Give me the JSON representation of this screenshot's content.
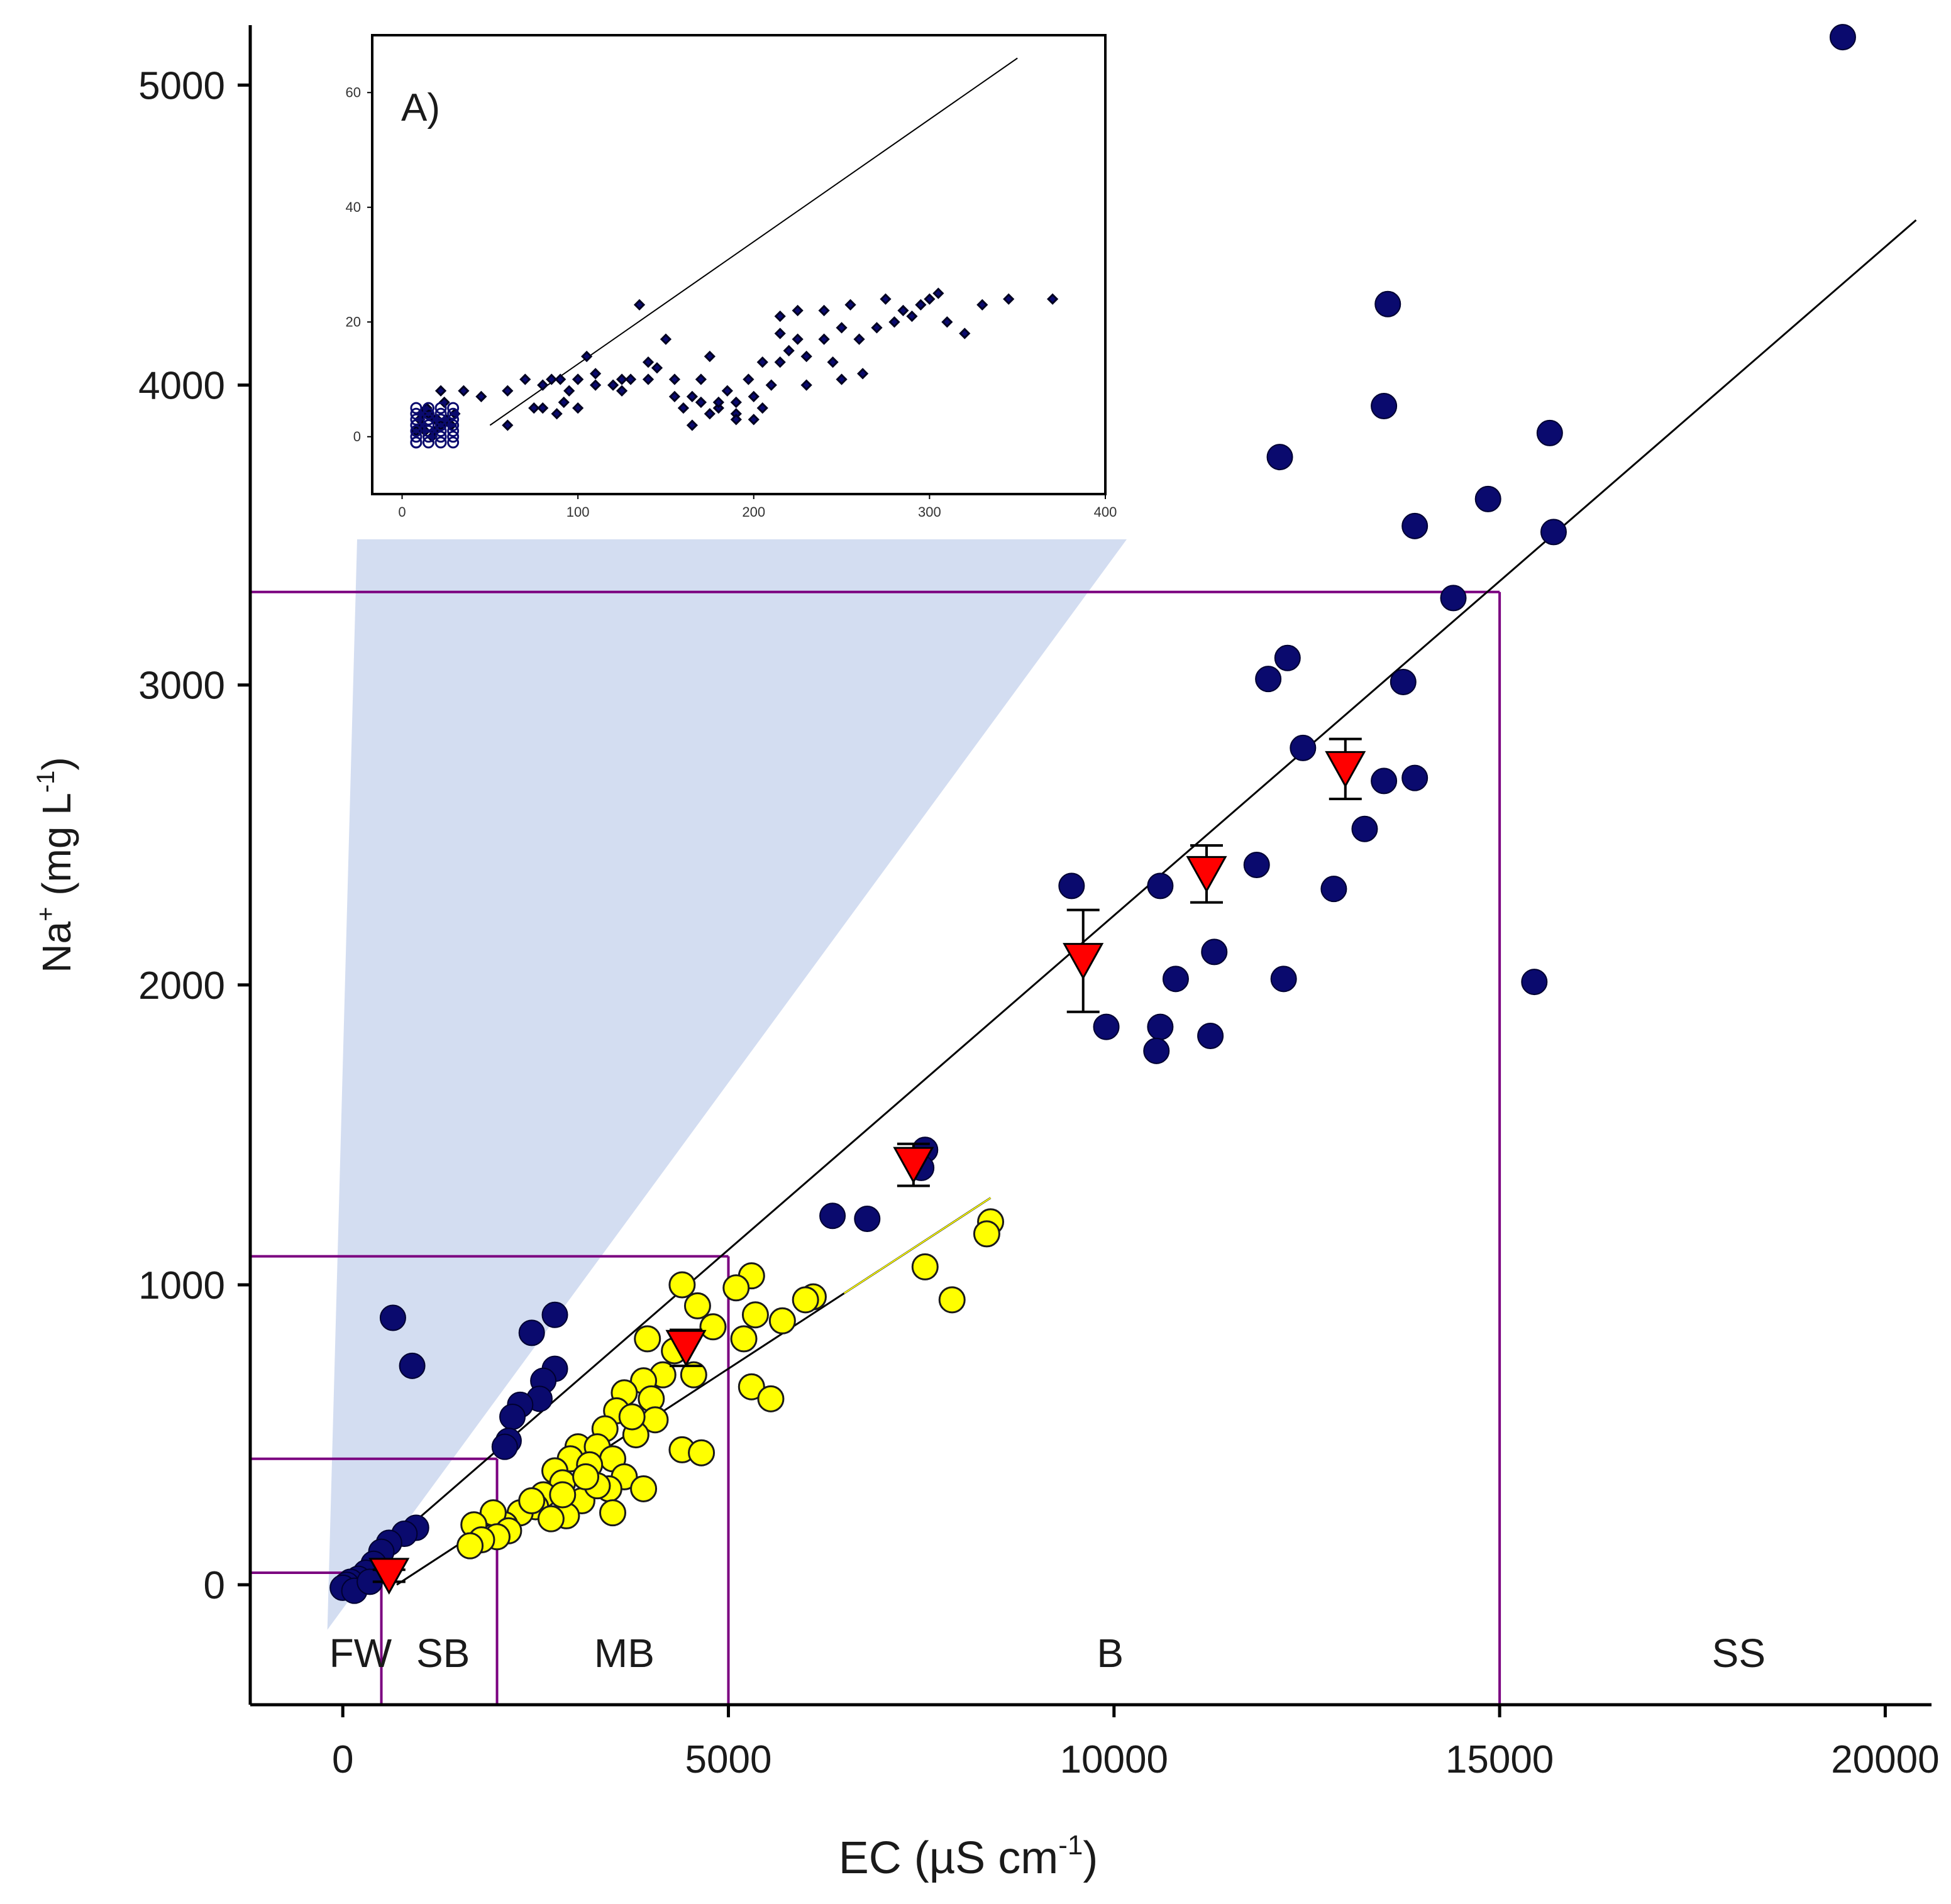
{
  "colors": {
    "blue_points": "#0a0a6e",
    "yellow_points": "#ffff00",
    "red_markers": "#ff0000",
    "zone_lines": "#7b0080",
    "fit_line": "#000000",
    "highlight": "#c8d4ee"
  },
  "chart_data": [
    {
      "type": "scatter",
      "title": "",
      "xlabel": "EC (µS cm",
      "xlabel_sup": "-1",
      "xlabel_end": ")",
      "ylabel": "Na",
      "ylabel_sup1": "+",
      "ylabel_mid": " (mg L",
      "ylabel_sup2": "-1",
      "ylabel_end": ")",
      "xlim": [
        -1200,
        20600
      ],
      "ylim": [
        -400,
        5200
      ],
      "xticks": [
        0,
        5000,
        10000,
        15000,
        20000
      ],
      "xtick_labels": [
        "0",
        "5000",
        "10000",
        "15000",
        "20000"
      ],
      "yticks": [
        0,
        1000,
        2000,
        3000,
        4000,
        5000
      ],
      "ytick_labels": [
        "0",
        "1000",
        "2000",
        "3000",
        "4000",
        "5000"
      ],
      "zones": [
        {
          "label": "FW",
          "x_center": 230
        },
        {
          "label": "SB",
          "x_center": 1300
        },
        {
          "label": "MB",
          "x_center": 3650
        },
        {
          "label": "B",
          "x_center": 9950
        },
        {
          "label": "SS",
          "x_center": 18100
        }
      ],
      "zone_boundaries": [
        {
          "ec": 500,
          "na": 40
        },
        {
          "ec": 2000,
          "na": 420
        },
        {
          "ec": 5000,
          "na": 1095
        },
        {
          "ec": 15000,
          "na": 3310
        }
      ],
      "fit_lines": [
        {
          "name": "all samples fit",
          "x": [
            -100,
            20400
          ],
          "y": [
            -20,
            4550
          ]
        },
        {
          "name": "yellow samples fit",
          "x": [
            700,
            8400
          ],
          "y": [
            0,
            1290
          ]
        }
      ],
      "series": [
        {
          "name": "blue samples",
          "points": [
            [
              19450,
              5160
            ],
            [
              13550,
              4270
            ],
            [
              13500,
              3930
            ],
            [
              12150,
              3760
            ],
            [
              15650,
              3840
            ],
            [
              14850,
              3620
            ],
            [
              13900,
              3530
            ],
            [
              15700,
              3510
            ],
            [
              14400,
              3290
            ],
            [
              12250,
              3090
            ],
            [
              12000,
              3020
            ],
            [
              13750,
              3010
            ],
            [
              12450,
              2790
            ],
            [
              13500,
              2680
            ],
            [
              13900,
              2690
            ],
            [
              13250,
              2520
            ],
            [
              11850,
              2400
            ],
            [
              9450,
              2330
            ],
            [
              10600,
              2330
            ],
            [
              12850,
              2320
            ],
            [
              11300,
              2110
            ],
            [
              10800,
              2020
            ],
            [
              12200,
              2020
            ],
            [
              15450,
              2010
            ],
            [
              9900,
              1860
            ],
            [
              10600,
              1860
            ],
            [
              11250,
              1830
            ],
            [
              10550,
              1780
            ],
            [
              7550,
              1450
            ],
            [
              7500,
              1390
            ],
            [
              6350,
              1230
            ],
            [
              6800,
              1220
            ],
            [
              650,
              890
            ],
            [
              2750,
              900
            ],
            [
              900,
              730
            ],
            [
              2450,
              840
            ],
            [
              2750,
              720
            ],
            [
              2600,
              680
            ],
            [
              2550,
              620
            ],
            [
              2300,
              600
            ],
            [
              2200,
              560
            ],
            [
              2150,
              480
            ],
            [
              2100,
              460
            ],
            [
              950,
              190
            ],
            [
              800,
              170
            ],
            [
              600,
              140
            ],
            [
              500,
              110
            ],
            [
              400,
              70
            ],
            [
              300,
              40
            ],
            [
              200,
              20
            ],
            [
              100,
              10
            ],
            [
              50,
              0
            ],
            [
              0,
              -10
            ],
            [
              150,
              -20
            ],
            [
              350,
              10
            ]
          ]
        },
        {
          "name": "yellow samples",
          "points": [
            [
              8400,
              1210
            ],
            [
              8350,
              1170
            ],
            [
              7550,
              1060
            ],
            [
              7900,
              950
            ],
            [
              5300,
              1030
            ],
            [
              5100,
              990
            ],
            [
              4400,
              1000
            ],
            [
              6100,
              960
            ],
            [
              6000,
              950
            ],
            [
              4600,
              930
            ],
            [
              5350,
              900
            ],
            [
              5700,
              880
            ],
            [
              4800,
              860
            ],
            [
              5200,
              820
            ],
            [
              3950,
              820
            ],
            [
              4300,
              780
            ],
            [
              4150,
              700
            ],
            [
              4550,
              700
            ],
            [
              3900,
              680
            ],
            [
              5300,
              660
            ],
            [
              5550,
              620
            ],
            [
              3650,
              640
            ],
            [
              4000,
              620
            ],
            [
              3550,
              580
            ],
            [
              4050,
              550
            ],
            [
              3400,
              520
            ],
            [
              3800,
              500
            ],
            [
              3050,
              460
            ],
            [
              3300,
              460
            ],
            [
              4400,
              450
            ],
            [
              4650,
              440
            ],
            [
              3500,
              420
            ],
            [
              2950,
              420
            ],
            [
              3200,
              400
            ],
            [
              2750,
              380
            ],
            [
              3650,
              360
            ],
            [
              2850,
              340
            ],
            [
              3450,
              320
            ],
            [
              2600,
              300
            ],
            [
              3100,
              280
            ],
            [
              3900,
              320
            ],
            [
              2500,
              260
            ],
            [
              2300,
              240
            ],
            [
              2900,
              230
            ],
            [
              3500,
              240
            ],
            [
              2100,
              200
            ],
            [
              1950,
              240
            ],
            [
              2150,
              180
            ],
            [
              2000,
              160
            ],
            [
              1700,
              200
            ],
            [
              1800,
              150
            ],
            [
              1650,
              130
            ],
            [
              2700,
              220
            ],
            [
              2450,
              280
            ],
            [
              3300,
              330
            ],
            [
              3750,
              560
            ],
            [
              2850,
              300
            ],
            [
              3150,
              360
            ]
          ]
        },
        {
          "name": "mean values",
          "points": [
            [
              13000,
              2720,
              100
            ],
            [
              11200,
              2370,
              95
            ],
            [
              9600,
              2080,
              170
            ],
            [
              7400,
              1400,
              70
            ],
            [
              4450,
              790,
              60
            ],
            [
              600,
              30,
              20
            ]
          ]
        }
      ]
    },
    {
      "type": "scatter",
      "title": "",
      "panel_label": "A)",
      "xlim": [
        -17,
        400
      ],
      "ylim": [
        -10,
        70
      ],
      "xticks": [
        0,
        100,
        200,
        300,
        400
      ],
      "xtick_labels": [
        "0",
        "100",
        "200",
        "300",
        "400"
      ],
      "yticks": [
        0,
        20,
        40,
        60
      ],
      "ytick_labels": [
        "0",
        "20",
        "40",
        "60"
      ],
      "fit_line": {
        "x": [
          50,
          350
        ],
        "y": [
          2,
          66
        ]
      },
      "series": [
        {
          "name": "inset samples",
          "points": [
            [
              10,
              3
            ],
            [
              12,
              2
            ],
            [
              15,
              4
            ],
            [
              18,
              1
            ],
            [
              20,
              3
            ],
            [
              14,
              5
            ],
            [
              22,
              2
            ],
            [
              8,
              1
            ],
            [
              25,
              3
            ],
            [
              17,
              0
            ],
            [
              13,
              1
            ],
            [
              28,
              2
            ],
            [
              30,
              4
            ],
            [
              19,
              3
            ],
            [
              11,
              4
            ],
            [
              24,
              6
            ],
            [
              35,
              8
            ],
            [
              22,
              8
            ],
            [
              45,
              7
            ],
            [
              60,
              2
            ],
            [
              80,
              9
            ],
            [
              85,
              10
            ],
            [
              90,
              10
            ],
            [
              100,
              10
            ],
            [
              110,
              9
            ],
            [
              120,
              9
            ],
            [
              125,
              8
            ],
            [
              95,
              8
            ],
            [
              130,
              10
            ],
            [
              140,
              10
            ],
            [
              140,
              13
            ],
            [
              105,
              14
            ],
            [
              135,
              23
            ],
            [
              150,
              17
            ],
            [
              155,
              10
            ],
            [
              165,
              7
            ],
            [
              170,
              10
            ],
            [
              175,
              14
            ],
            [
              160,
              5
            ],
            [
              180,
              5
            ],
            [
              190,
              6
            ],
            [
              200,
              7
            ],
            [
              210,
              9
            ],
            [
              215,
              13
            ],
            [
              220,
              15
            ],
            [
              225,
              17
            ],
            [
              240,
              17
            ],
            [
              250,
              19
            ],
            [
              260,
              17
            ],
            [
              270,
              19
            ],
            [
              280,
              20
            ],
            [
              290,
              21
            ],
            [
              300,
              24
            ],
            [
              310,
              20
            ],
            [
              305,
              25
            ],
            [
              320,
              18
            ],
            [
              330,
              23
            ],
            [
              345,
              24
            ],
            [
              370,
              24
            ],
            [
              262,
              11
            ],
            [
              250,
              10
            ],
            [
              230,
              9
            ],
            [
              190,
              4
            ],
            [
              200,
              3
            ],
            [
              185,
              8
            ],
            [
              205,
              13
            ],
            [
              215,
              21
            ],
            [
              225,
              22
            ],
            [
              240,
              22
            ],
            [
              255,
              23
            ],
            [
              275,
              24
            ],
            [
              285,
              22
            ],
            [
              295,
              23
            ],
            [
              80,
              5
            ],
            [
              88,
              4
            ],
            [
              92,
              6
            ],
            [
              100,
              5
            ],
            [
              70,
              10
            ],
            [
              60,
              8
            ],
            [
              75,
              5
            ],
            [
              100,
              10
            ],
            [
              110,
              11
            ],
            [
              125,
              10
            ],
            [
              145,
              12
            ],
            [
              155,
              7
            ],
            [
              170,
              6
            ],
            [
              175,
              4
            ],
            [
              165,
              2
            ],
            [
              180,
              6
            ],
            [
              190,
              3
            ],
            [
              197,
              10
            ],
            [
              205,
              5
            ],
            [
              215,
              18
            ],
            [
              230,
              14
            ],
            [
              245,
              13
            ]
          ]
        }
      ]
    }
  ]
}
